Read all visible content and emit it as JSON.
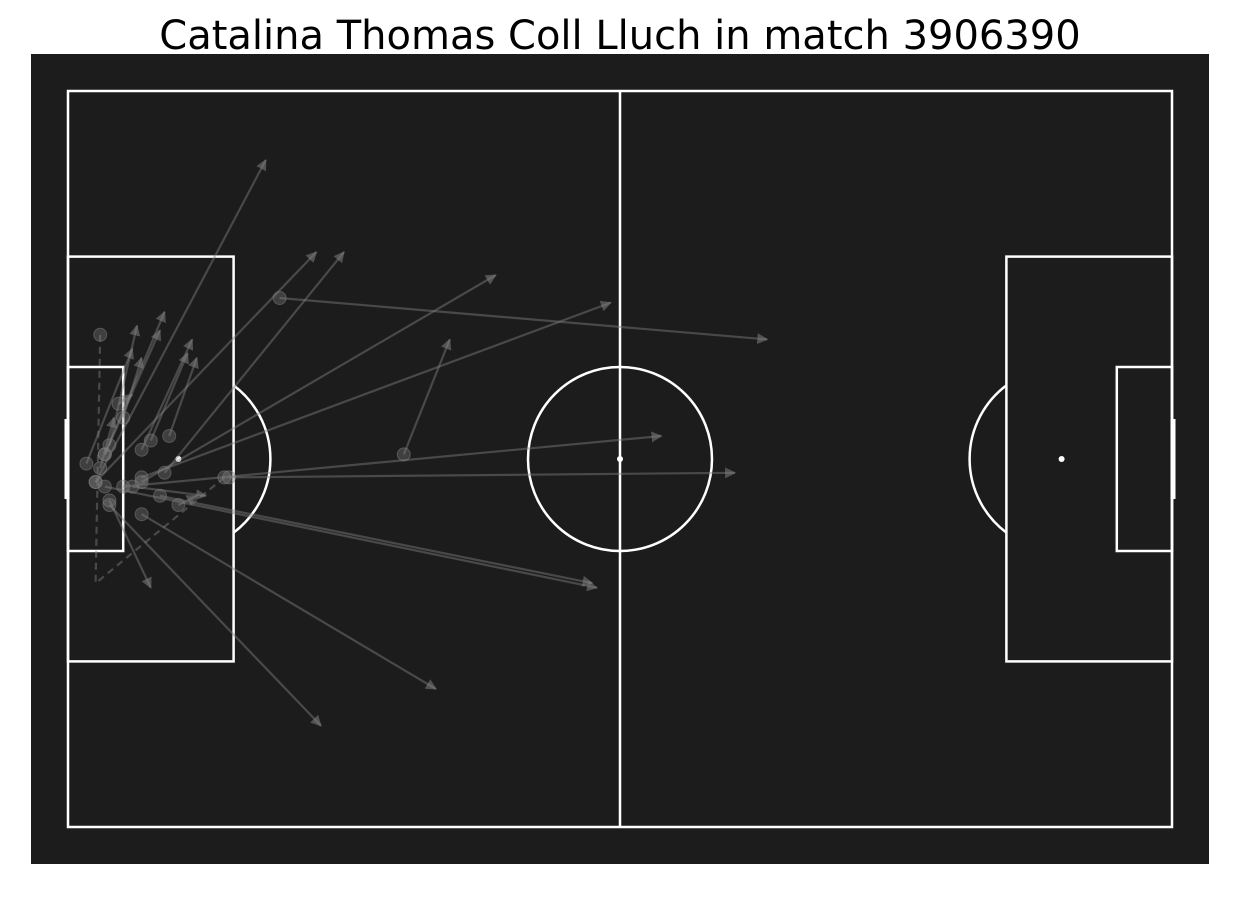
{
  "title": "Catalina Thomas Coll Lluch in match 3906390",
  "colors": {
    "pitch_background": "#1c1c1c",
    "lines": "#ffffff",
    "pass_marker": "#808080"
  },
  "chart_data": {
    "type": "scatter",
    "title": "Catalina Thomas Coll Lluch in match 3906390",
    "xlabel": "",
    "ylabel": "",
    "xlim": [
      0,
      120
    ],
    "ylim": [
      0,
      80
    ],
    "pitch": "statsbomb",
    "grid": false,
    "legend": "none",
    "passes": [
      {
        "x": 3,
        "y": 42.5,
        "end_x": 21.5,
        "end_y": 7.5,
        "outcome": "complete"
      },
      {
        "x": 3,
        "y": 42.5,
        "end_x": 27,
        "end_y": 17.5,
        "outcome": "complete"
      },
      {
        "x": 4,
        "y": 39.5,
        "end_x": 10,
        "end_y": 26,
        "outcome": "complete"
      },
      {
        "x": 4,
        "y": 39.5,
        "end_x": 10.5,
        "end_y": 24,
        "outcome": "complete"
      },
      {
        "x": 4.5,
        "y": 38.5,
        "end_x": 7.5,
        "end_y": 25.5,
        "outcome": "complete"
      },
      {
        "x": 2,
        "y": 40.5,
        "end_x": 7,
        "end_y": 28,
        "outcome": "complete"
      },
      {
        "x": 6,
        "y": 35.5,
        "end_x": 8,
        "end_y": 29,
        "outcome": "complete"
      },
      {
        "x": 8,
        "y": 39,
        "end_x": 13.5,
        "end_y": 27,
        "outcome": "complete"
      },
      {
        "x": 9,
        "y": 38,
        "end_x": 13,
        "end_y": 28.5,
        "outcome": "complete"
      },
      {
        "x": 23,
        "y": 22.5,
        "end_x": 76,
        "end_y": 27,
        "outcome": "complete"
      },
      {
        "x": 36.5,
        "y": 39.5,
        "end_x": 41.5,
        "end_y": 27,
        "outcome": "complete"
      },
      {
        "x": 8,
        "y": 42.5,
        "end_x": 46.5,
        "end_y": 20,
        "outcome": "complete"
      },
      {
        "x": 8,
        "y": 42,
        "end_x": 59,
        "end_y": 23,
        "outcome": "complete"
      },
      {
        "x": 6,
        "y": 43,
        "end_x": 64.5,
        "end_y": 37.5,
        "outcome": "complete"
      },
      {
        "x": 17.5,
        "y": 42,
        "end_x": 72.5,
        "end_y": 41.5,
        "outcome": "complete"
      },
      {
        "x": 4,
        "y": 43,
        "end_x": 57.5,
        "end_y": 54,
        "outcome": "complete"
      },
      {
        "x": 10,
        "y": 44,
        "end_x": 57,
        "end_y": 53.5,
        "outcome": "complete"
      },
      {
        "x": 8,
        "y": 46,
        "end_x": 40,
        "end_y": 65,
        "outcome": "complete"
      },
      {
        "x": 4.5,
        "y": 45,
        "end_x": 27.5,
        "end_y": 69,
        "outcome": "complete"
      },
      {
        "x": 4.5,
        "y": 44.5,
        "end_x": 9,
        "end_y": 54,
        "outcome": "complete"
      },
      {
        "x": 7,
        "y": 43,
        "end_x": 15,
        "end_y": 44,
        "outcome": "complete"
      },
      {
        "x": 10.5,
        "y": 41.5,
        "end_x": 30,
        "end_y": 17.5,
        "outcome": "complete"
      },
      {
        "x": 11,
        "y": 37.5,
        "end_x": 14,
        "end_y": 29,
        "outcome": "complete"
      },
      {
        "x": 3.5,
        "y": 26.5,
        "end_x": 3,
        "end_y": 53.5,
        "outcome": "incomplete"
      },
      {
        "x": 17,
        "y": 42,
        "end_x": 3,
        "end_y": 53.5,
        "outcome": "incomplete"
      },
      {
        "x": 5.5,
        "y": 34,
        "end_x": 7,
        "end_y": 33,
        "outcome": "complete"
      },
      {
        "x": 3.5,
        "y": 41,
        "end_x": 5,
        "end_y": 35.5,
        "outcome": "complete"
      },
      {
        "x": 12,
        "y": 45,
        "end_x": 14,
        "end_y": 44,
        "outcome": "complete"
      }
    ]
  }
}
